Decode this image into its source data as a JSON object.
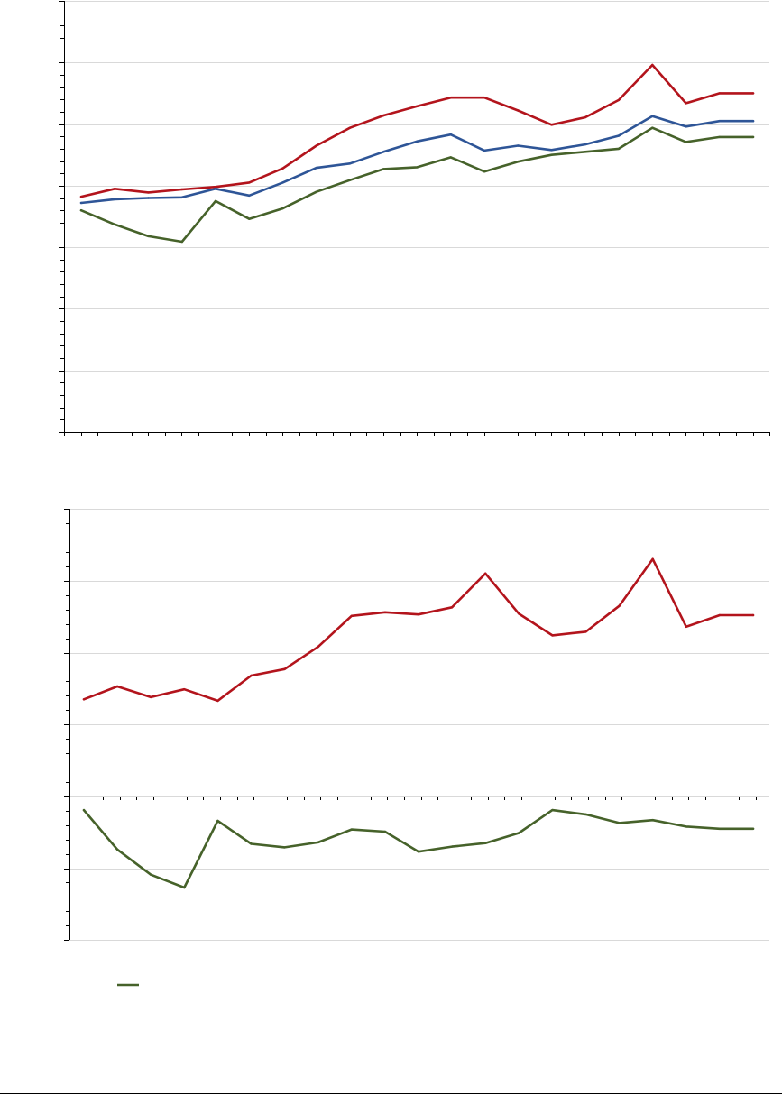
{
  "colors": {
    "red": "#b3141c",
    "blue": "#2e5597",
    "green": "#46622a",
    "grid": "#d9d9d9",
    "axis": "#000000"
  },
  "chart_data": [
    {
      "type": "line",
      "title": "",
      "xlabel": "",
      "ylabel": "",
      "ylim": [
        0,
        7
      ],
      "grid": true,
      "x_count": 21,
      "series": [
        {
          "color": "red",
          "values": [
            3.82,
            3.95,
            3.89,
            3.94,
            3.98,
            4.05,
            4.28,
            4.65,
            4.94,
            5.14,
            5.29,
            5.43,
            5.43,
            5.22,
            4.99,
            5.11,
            5.39,
            5.96,
            5.34,
            5.5,
            5.5
          ]
        },
        {
          "color": "blue",
          "values": [
            3.72,
            3.78,
            3.8,
            3.81,
            3.95,
            3.84,
            4.05,
            4.29,
            4.36,
            4.55,
            4.72,
            4.83,
            4.57,
            4.65,
            4.58,
            4.67,
            4.81,
            5.13,
            4.96,
            5.05,
            5.05
          ]
        },
        {
          "color": "green",
          "values": [
            3.6,
            3.37,
            3.18,
            3.09,
            3.75,
            3.46,
            3.63,
            3.9,
            4.09,
            4.27,
            4.3,
            4.46,
            4.23,
            4.39,
            4.5,
            4.55,
            4.6,
            4.94,
            4.71,
            4.79,
            4.79
          ]
        }
      ]
    },
    {
      "type": "line",
      "title": "",
      "xlabel": "",
      "ylabel": "",
      "ylim": [
        0,
        4
      ],
      "grid": true,
      "x_count": 21,
      "series": [
        {
          "color": "red",
          "values": [
            1.35,
            1.53,
            1.38,
            1.49,
            1.33,
            1.68,
            1.77,
            2.08,
            2.51,
            2.56,
            2.53,
            2.63,
            3.1,
            2.54,
            2.24,
            2.29,
            2.65,
            3.3,
            2.36,
            2.52,
            2.52
          ]
        }
      ]
    },
    {
      "type": "line",
      "title": "",
      "xlabel": "",
      "ylabel": "",
      "ylim": [
        0,
        2
      ],
      "grid": true,
      "x_count": 21,
      "series": [
        {
          "color": "green",
          "values": [
            1.81,
            1.26,
            0.91,
            0.73,
            1.66,
            1.34,
            1.29,
            1.36,
            1.54,
            1.51,
            1.23,
            1.3,
            1.35,
            1.49,
            1.81,
            1.75,
            1.63,
            1.67,
            1.58,
            1.55,
            1.55
          ]
        }
      ]
    }
  ],
  "legend": [
    {
      "color": "green",
      "icon": "line-swatch",
      "label": ""
    }
  ]
}
